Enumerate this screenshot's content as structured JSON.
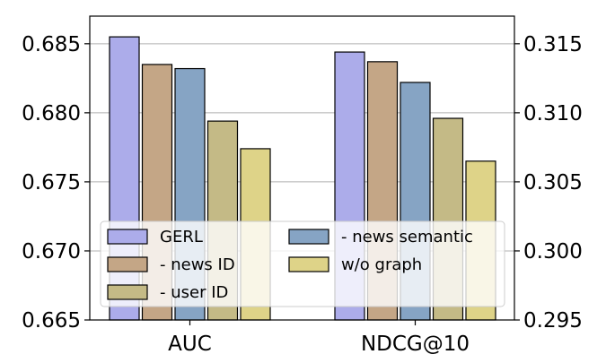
{
  "chart_data": {
    "type": "bar",
    "categories": [
      "AUC",
      "NDCG@10"
    ],
    "series": [
      {
        "name": "GERL",
        "values": [
          0.6855,
          0.3144
        ],
        "color": "#acacea"
      },
      {
        "name": "- news ID",
        "values": [
          0.6835,
          0.3137
        ],
        "color": "#c4a686"
      },
      {
        "name": "- news semantic",
        "values": [
          0.6832,
          0.3122
        ],
        "color": "#86a4c4"
      },
      {
        "name": "- user ID",
        "values": [
          0.6794,
          0.3096
        ],
        "color": "#c4ba86"
      },
      {
        "name": "w/o graph",
        "values": [
          0.6774,
          0.3065
        ],
        "color": "#ded388"
      }
    ],
    "left_axis": {
      "ylim": [
        0.665,
        0.687
      ],
      "ticks": [
        "0.665",
        "0.670",
        "0.675",
        "0.680",
        "0.685"
      ],
      "applies_to": "AUC"
    },
    "right_axis": {
      "ylim": [
        0.295,
        0.317
      ],
      "ticks": [
        "0.295",
        "0.300",
        "0.305",
        "0.310",
        "0.315"
      ],
      "applies_to": "NDCG@10"
    },
    "grid": "horizontal",
    "legend": {
      "placement": "lower-center",
      "columns": 2,
      "entries": [
        "GERL",
        "- news ID",
        "- user ID",
        "- news semantic",
        "w/o graph"
      ]
    }
  }
}
